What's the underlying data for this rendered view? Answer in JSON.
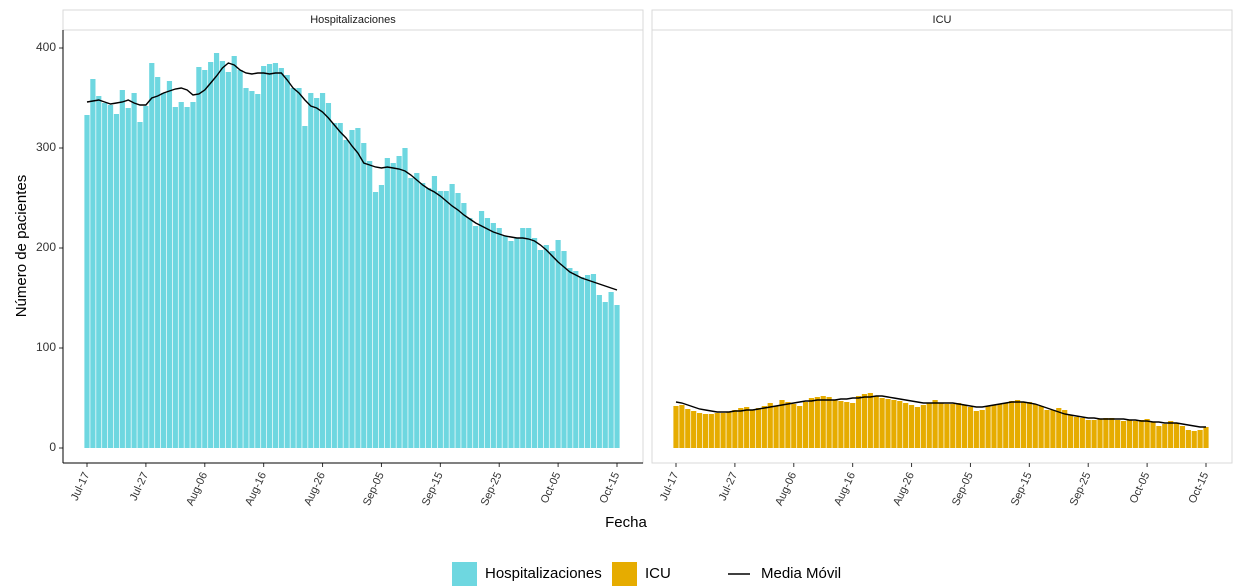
{
  "chart_data": {
    "type": "bar",
    "x_label": "Fecha",
    "y_label": "Número de pacientes",
    "categories": [
      "Jul-17",
      null,
      null,
      null,
      null,
      null,
      null,
      null,
      null,
      null,
      "Jul-27",
      null,
      null,
      null,
      null,
      null,
      null,
      null,
      null,
      null,
      "Aug-06",
      null,
      null,
      null,
      null,
      null,
      null,
      null,
      null,
      null,
      "Aug-16",
      null,
      null,
      null,
      null,
      null,
      null,
      null,
      null,
      null,
      "Aug-26",
      null,
      null,
      null,
      null,
      null,
      null,
      null,
      null,
      null,
      "Sep-05",
      null,
      null,
      null,
      null,
      null,
      null,
      null,
      null,
      null,
      "Sep-15",
      null,
      null,
      null,
      null,
      null,
      null,
      null,
      null,
      null,
      "Sep-25",
      null,
      null,
      null,
      null,
      null,
      null,
      null,
      null,
      null,
      "Oct-05",
      null,
      null,
      null,
      null,
      null,
      null,
      null,
      null,
      null,
      "Oct-15"
    ],
    "ylim": [
      -15,
      418
    ],
    "yticks": [
      0,
      100,
      200,
      300,
      400
    ],
    "panels": [
      {
        "title": "Hospitalizaciones",
        "series": [
          {
            "name": "Hospitalizaciones",
            "type": "bar",
            "color": "#6ed7e0",
            "values": [
              333,
              369,
              352,
              345,
              343,
              334,
              358,
              340,
              355,
              326,
              342,
              385,
              371,
              355,
              367,
              341,
              346,
              341,
              346,
              381,
              378,
              386,
              395,
              387,
              376,
              392,
              378,
              360,
              357,
              354,
              382,
              384,
              385,
              380,
              373,
              360,
              360,
              322,
              355,
              350,
              355,
              345,
              325,
              325,
              308,
              318,
              320,
              305,
              287,
              256,
              263,
              290,
              285,
              292,
              300,
              270,
              275,
              265,
              260,
              272,
              257,
              257,
              264,
              255,
              245,
              230,
              222,
              237,
              230,
              225,
              220,
              212,
              207,
              210,
              220,
              220,
              210,
              198,
              203,
              197,
              208,
              197,
              180,
              177,
              171,
              173,
              174,
              153,
              146,
              156,
              143
            ]
          },
          {
            "name": "Media Móvil",
            "type": "line",
            "color": "#000000",
            "values": [
              346,
              347,
              348,
              346,
              344,
              345,
              346,
              348,
              345,
              343,
              343,
              350,
              352,
              355,
              357,
              359,
              360,
              358,
              353,
              354,
              358,
              365,
              372,
              380,
              385,
              383,
              378,
              375,
              374,
              375,
              375,
              374,
              375,
              375,
              368,
              360,
              355,
              348,
              342,
              340,
              336,
              330,
              323,
              316,
              310,
              302,
              295,
              285,
              283,
              281,
              280,
              281,
              280,
              279,
              277,
              273,
              268,
              263,
              259,
              256,
              252,
              247,
              242,
              238,
              233,
              229,
              225,
              222,
              219,
              216,
              214,
              212,
              211,
              210,
              210,
              209,
              207,
              203,
              198,
              192,
              186,
              181,
              176,
              173,
              170,
              168,
              166,
              164,
              162,
              160,
              158
            ]
          }
        ]
      },
      {
        "title": "ICU",
        "series": [
          {
            "name": "ICU",
            "type": "bar",
            "color": "#e6ac00",
            "values": [
              42,
              43,
              39,
              37,
              35,
              34,
              34,
              35,
              35,
              36,
              38,
              40,
              41,
              38,
              40,
              42,
              45,
              42,
              48,
              46,
              44,
              42,
              46,
              50,
              51,
              52,
              51,
              48,
              47,
              46,
              45,
              52,
              54,
              55,
              52,
              50,
              49,
              48,
              47,
              45,
              43,
              41,
              43,
              45,
              48,
              45,
              44,
              44,
              45,
              43,
              41,
              37,
              38,
              42,
              43,
              44,
              45,
              47,
              48,
              46,
              46,
              44,
              42,
              38,
              38,
              40,
              38,
              33,
              31,
              30,
              28,
              28,
              29,
              30,
              30,
              28,
              27,
              28,
              27,
              28,
              29,
              26,
              22,
              24,
              27,
              25,
              22,
              18,
              17,
              18,
              21
            ]
          },
          {
            "name": "Media Móvil",
            "type": "line",
            "color": "#000000",
            "values": [
              46,
              45,
              43,
              41,
              39,
              38,
              37,
              36,
              36,
              36,
              37,
              37,
              38,
              38,
              39,
              40,
              41,
              42,
              43,
              44,
              45,
              46,
              47,
              47,
              48,
              48,
              48,
              48,
              49,
              49,
              50,
              50,
              51,
              51,
              52,
              52,
              51,
              50,
              49,
              48,
              47,
              46,
              45,
              45,
              45,
              45,
              45,
              45,
              44,
              43,
              42,
              41,
              41,
              42,
              43,
              44,
              45,
              46,
              46,
              46,
              45,
              44,
              42,
              40,
              38,
              36,
              34,
              33,
              32,
              31,
              30,
              30,
              29,
              29,
              29,
              29,
              29,
              28,
              28,
              27,
              27,
              26,
              26,
              25,
              25,
              25,
              24,
              23,
              22,
              21,
              21
            ]
          }
        ]
      }
    ]
  }
}
